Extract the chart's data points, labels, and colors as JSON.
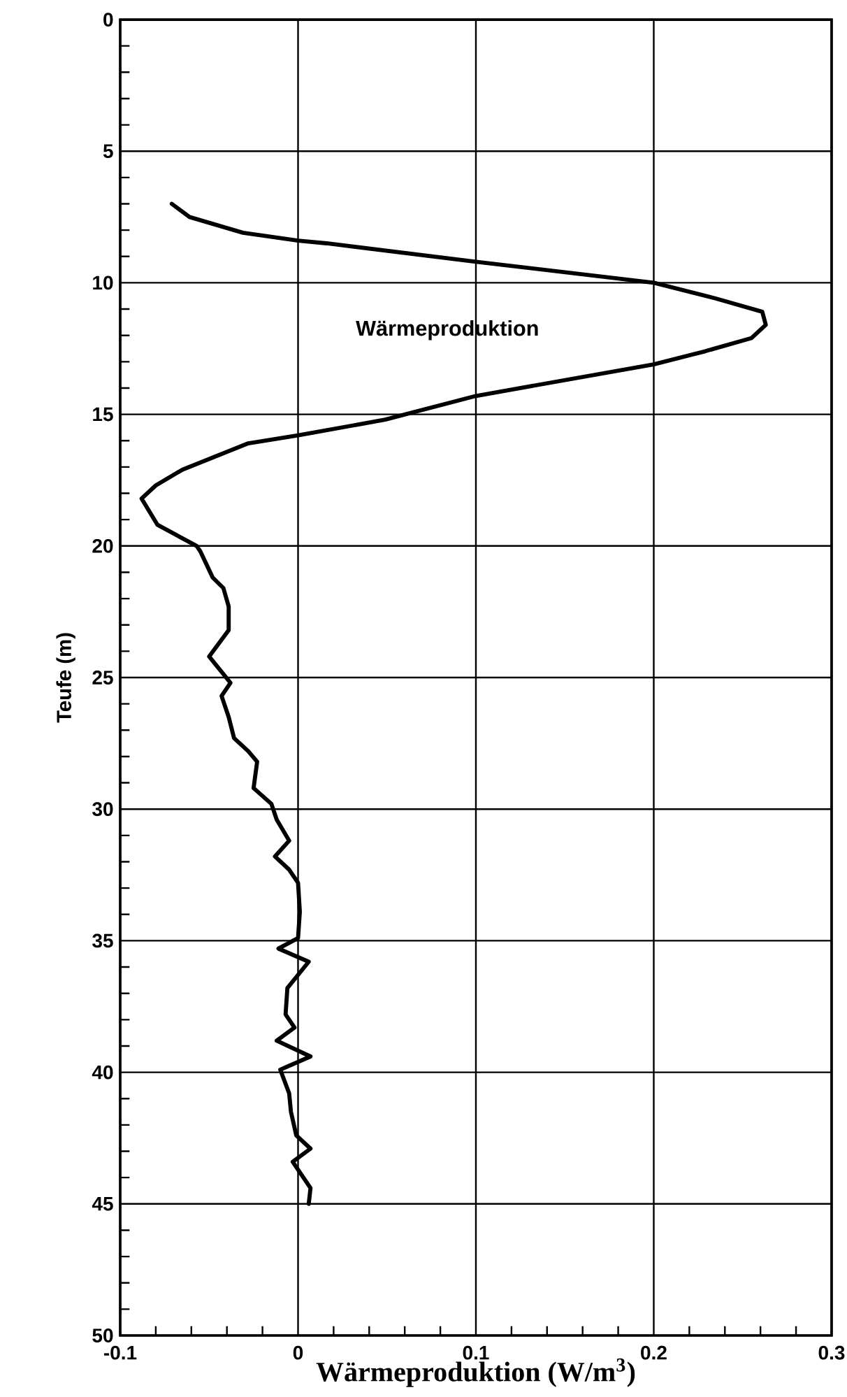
{
  "chart_data": {
    "type": "line",
    "xlabel": "Wärmeproduktion (W/m$^{3}$)",
    "ylabel": "Teufe (m)",
    "xlim": [
      -0.1,
      0.3
    ],
    "xticks": [
      -0.1,
      0,
      0.1,
      0.2,
      0.3
    ],
    "ylim": [
      50,
      0
    ],
    "yticks": [
      0,
      5,
      10,
      15,
      20,
      25,
      30,
      35,
      40,
      45,
      50
    ],
    "grid": true,
    "marker": "none",
    "line_style": "solid",
    "series": [
      {
        "name": "Wärmeproduktion",
        "color": "#000000",
        "x": [
          -0.071,
          -0.061,
          -0.031,
          0.0,
          0.016,
          0.1,
          0.2,
          0.235,
          0.261,
          0.263,
          0.255,
          0.229,
          0.2,
          0.1,
          0.049,
          0.0,
          -0.028,
          -0.065,
          -0.08,
          -0.088,
          -0.079,
          -0.057,
          -0.055,
          -0.048,
          -0.042,
          -0.039,
          -0.039,
          -0.05,
          -0.038,
          -0.043,
          -0.039,
          -0.036,
          -0.028,
          -0.023,
          -0.025,
          -0.015,
          -0.012,
          -0.005,
          -0.013,
          -0.005,
          0.0,
          0.001,
          0.0,
          -0.011,
          0.006,
          -0.006,
          -0.007,
          -0.002,
          -0.012,
          0.007,
          -0.01,
          -0.005,
          -0.004,
          -0.001,
          0.007,
          -0.003,
          0.007,
          0.006
        ],
        "values": [
          7.0,
          7.5,
          8.1,
          8.4,
          8.5,
          9.2,
          10.0,
          10.6,
          11.1,
          11.6,
          12.1,
          12.6,
          13.1,
          14.3,
          15.2,
          15.8,
          16.1,
          17.1,
          17.7,
          18.2,
          19.2,
          20.0,
          20.2,
          21.2,
          21.6,
          22.3,
          23.2,
          24.2,
          25.2,
          25.7,
          26.5,
          27.3,
          27.8,
          28.2,
          29.2,
          29.8,
          30.4,
          31.2,
          31.8,
          32.3,
          32.8,
          33.9,
          34.9,
          35.3,
          35.8,
          36.8,
          37.8,
          38.3,
          38.8,
          39.4,
          39.9,
          40.8,
          41.5,
          42.4,
          42.9,
          43.4,
          44.4,
          45.0
        ]
      }
    ]
  }
}
